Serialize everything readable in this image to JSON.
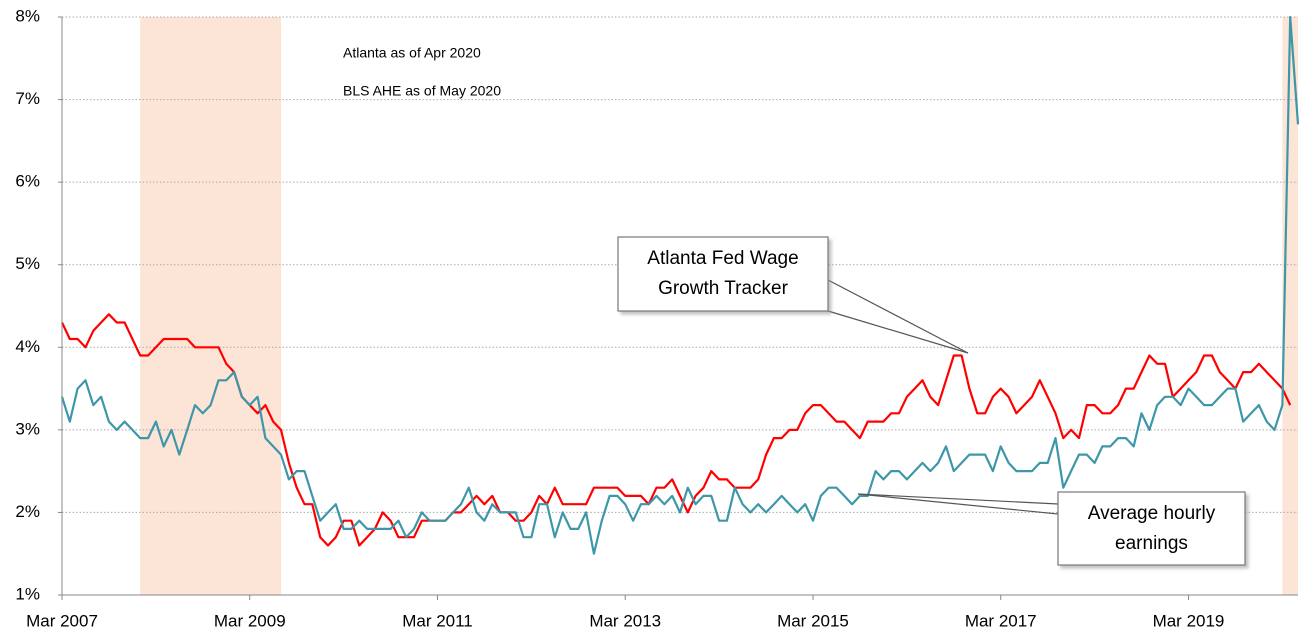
{
  "chart_data": {
    "type": "line",
    "notes": [
      "Atlanta as of Apr 2020",
      "BLS AHE as of May 2020"
    ],
    "x": [
      "2007-03",
      "2007-04",
      "2007-05",
      "2007-06",
      "2007-07",
      "2007-08",
      "2007-09",
      "2007-10",
      "2007-11",
      "2007-12",
      "2008-01",
      "2008-02",
      "2008-03",
      "2008-04",
      "2008-05",
      "2008-06",
      "2008-07",
      "2008-08",
      "2008-09",
      "2008-10",
      "2008-11",
      "2008-12",
      "2009-01",
      "2009-02",
      "2009-03",
      "2009-04",
      "2009-05",
      "2009-06",
      "2009-07",
      "2009-08",
      "2009-09",
      "2009-10",
      "2009-11",
      "2009-12",
      "2010-01",
      "2010-02",
      "2010-03",
      "2010-04",
      "2010-05",
      "2010-06",
      "2010-07",
      "2010-08",
      "2010-09",
      "2010-10",
      "2010-11",
      "2010-12",
      "2011-01",
      "2011-02",
      "2011-03",
      "2011-04",
      "2011-05",
      "2011-06",
      "2011-07",
      "2011-08",
      "2011-09",
      "2011-10",
      "2011-11",
      "2011-12",
      "2012-01",
      "2012-02",
      "2012-03",
      "2012-04",
      "2012-05",
      "2012-06",
      "2012-07",
      "2012-08",
      "2012-09",
      "2012-10",
      "2012-11",
      "2012-12",
      "2013-01",
      "2013-02",
      "2013-03",
      "2013-04",
      "2013-05",
      "2013-06",
      "2013-07",
      "2013-08",
      "2013-09",
      "2013-10",
      "2013-11",
      "2013-12",
      "2014-01",
      "2014-02",
      "2014-03",
      "2014-04",
      "2014-05",
      "2014-06",
      "2014-07",
      "2014-08",
      "2014-09",
      "2014-10",
      "2014-11",
      "2014-12",
      "2015-01",
      "2015-02",
      "2015-03",
      "2015-04",
      "2015-05",
      "2015-06",
      "2015-07",
      "2015-08",
      "2015-09",
      "2015-10",
      "2015-11",
      "2015-12",
      "2016-01",
      "2016-02",
      "2016-03",
      "2016-04",
      "2016-05",
      "2016-06",
      "2016-07",
      "2016-08",
      "2016-09",
      "2016-10",
      "2016-11",
      "2016-12",
      "2017-01",
      "2017-02",
      "2017-03",
      "2017-04",
      "2017-05",
      "2017-06",
      "2017-07",
      "2017-08",
      "2017-09",
      "2017-10",
      "2017-11",
      "2017-12",
      "2018-01",
      "2018-02",
      "2018-03",
      "2018-04",
      "2018-05",
      "2018-06",
      "2018-07",
      "2018-08",
      "2018-09",
      "2018-10",
      "2018-11",
      "2018-12",
      "2019-01",
      "2019-02",
      "2019-03",
      "2019-04",
      "2019-05",
      "2019-06",
      "2019-07",
      "2019-08",
      "2019-09",
      "2019-10",
      "2019-11",
      "2019-12",
      "2020-01",
      "2020-02",
      "2020-03",
      "2020-04",
      "2020-05"
    ],
    "series": [
      {
        "label_lines": [
          "Atlanta Fed Wage",
          "Growth Tracker"
        ],
        "color": "#ff0000",
        "values": [
          4.3,
          4.1,
          4.1,
          4.0,
          4.2,
          4.3,
          4.4,
          4.3,
          4.3,
          4.1,
          3.9,
          3.9,
          4.0,
          4.1,
          4.1,
          4.1,
          4.1,
          4.0,
          4.0,
          4.0,
          4.0,
          3.8,
          3.7,
          3.4,
          3.3,
          3.2,
          3.3,
          3.1,
          3.0,
          2.6,
          2.3,
          2.1,
          2.1,
          1.7,
          1.6,
          1.7,
          1.9,
          1.9,
          1.6,
          1.7,
          1.8,
          2.0,
          1.9,
          1.7,
          1.7,
          1.7,
          1.9,
          1.9,
          1.9,
          1.9,
          2.0,
          2.0,
          2.1,
          2.2,
          2.1,
          2.2,
          2.0,
          2.0,
          1.9,
          1.9,
          2.0,
          2.2,
          2.1,
          2.3,
          2.1,
          2.1,
          2.1,
          2.1,
          2.3,
          2.3,
          2.3,
          2.3,
          2.2,
          2.2,
          2.2,
          2.1,
          2.3,
          2.3,
          2.4,
          2.2,
          2.0,
          2.2,
          2.3,
          2.5,
          2.4,
          2.4,
          2.3,
          2.3,
          2.3,
          2.4,
          2.7,
          2.9,
          2.9,
          3.0,
          3.0,
          3.2,
          3.3,
          3.3,
          3.2,
          3.1,
          3.1,
          3.0,
          2.9,
          3.1,
          3.1,
          3.1,
          3.2,
          3.2,
          3.4,
          3.5,
          3.6,
          3.4,
          3.3,
          3.6,
          3.9,
          3.9,
          3.5,
          3.2,
          3.2,
          3.4,
          3.5,
          3.4,
          3.2,
          3.3,
          3.4,
          3.6,
          3.4,
          3.2,
          2.9,
          3.0,
          2.9,
          3.3,
          3.3,
          3.2,
          3.2,
          3.3,
          3.5,
          3.5,
          3.7,
          3.9,
          3.8,
          3.8,
          3.4,
          3.5,
          3.6,
          3.7,
          3.9,
          3.9,
          3.7,
          3.6,
          3.5,
          3.7,
          3.7,
          3.8,
          3.7,
          3.6,
          3.5,
          3.3,
          null
        ]
      },
      {
        "label_lines": [
          "Average hourly",
          "earnings"
        ],
        "color": "#3d97a9",
        "label_color": "#5b8fd3",
        "values": [
          3.4,
          3.1,
          3.5,
          3.6,
          3.3,
          3.4,
          3.1,
          3.0,
          3.1,
          3.0,
          2.9,
          2.9,
          3.1,
          2.8,
          3.0,
          2.7,
          3.0,
          3.3,
          3.2,
          3.3,
          3.6,
          3.6,
          3.7,
          3.4,
          3.3,
          3.4,
          2.9,
          2.8,
          2.7,
          2.4,
          2.5,
          2.5,
          2.2,
          1.9,
          2.0,
          2.1,
          1.8,
          1.8,
          1.9,
          1.8,
          1.8,
          1.8,
          1.8,
          1.9,
          1.7,
          1.8,
          2.0,
          1.9,
          1.9,
          1.9,
          2.0,
          2.1,
          2.3,
          2.0,
          1.9,
          2.1,
          2.0,
          2.0,
          2.0,
          1.7,
          1.7,
          2.1,
          2.1,
          1.7,
          2.0,
          1.8,
          1.8,
          2.0,
          1.5,
          1.9,
          2.2,
          2.2,
          2.1,
          1.9,
          2.1,
          2.1,
          2.2,
          2.1,
          2.2,
          2.0,
          2.3,
          2.1,
          2.2,
          2.2,
          1.9,
          1.9,
          2.3,
          2.1,
          2.0,
          2.1,
          2.0,
          2.1,
          2.2,
          2.1,
          2.0,
          2.1,
          1.9,
          2.2,
          2.3,
          2.3,
          2.2,
          2.1,
          2.2,
          2.2,
          2.5,
          2.4,
          2.5,
          2.5,
          2.4,
          2.5,
          2.6,
          2.5,
          2.6,
          2.8,
          2.5,
          2.6,
          2.7,
          2.7,
          2.7,
          2.5,
          2.8,
          2.6,
          2.5,
          2.5,
          2.5,
          2.6,
          2.6,
          2.9,
          2.3,
          2.5,
          2.7,
          2.7,
          2.6,
          2.8,
          2.8,
          2.9,
          2.9,
          2.8,
          3.2,
          3.0,
          3.3,
          3.4,
          3.4,
          3.3,
          3.5,
          3.4,
          3.3,
          3.3,
          3.4,
          3.5,
          3.5,
          3.1,
          3.2,
          3.3,
          3.1,
          3.0,
          3.3,
          8.0,
          6.7
        ]
      }
    ],
    "shaded_periods": [
      [
        "2008-01",
        "2009-07"
      ],
      [
        "2020-03",
        "2020-05"
      ]
    ],
    "shade_color": "#fce4d6",
    "xlim": [
      "2007-03",
      "2020-05"
    ],
    "xticks": [
      {
        "value": "2007-03",
        "label": "Mar 2007"
      },
      {
        "value": "2009-03",
        "label": "Mar 2009"
      },
      {
        "value": "2011-03",
        "label": "Mar 2011"
      },
      {
        "value": "2013-03",
        "label": "Mar 2013"
      },
      {
        "value": "2015-03",
        "label": "Mar 2015"
      },
      {
        "value": "2017-03",
        "label": "Mar 2017"
      },
      {
        "value": "2019-03",
        "label": "Mar 2019"
      }
    ],
    "ylim": [
      1,
      8
    ],
    "yticks": [
      {
        "value": 1,
        "label": "1%"
      },
      {
        "value": 2,
        "label": "2%"
      },
      {
        "value": 3,
        "label": "3%"
      },
      {
        "value": 4,
        "label": "4%"
      },
      {
        "value": 5,
        "label": "5%"
      },
      {
        "value": 6,
        "label": "6%"
      },
      {
        "value": 7,
        "label": "7%"
      },
      {
        "value": 8,
        "label": "8%"
      }
    ],
    "grid": true
  }
}
